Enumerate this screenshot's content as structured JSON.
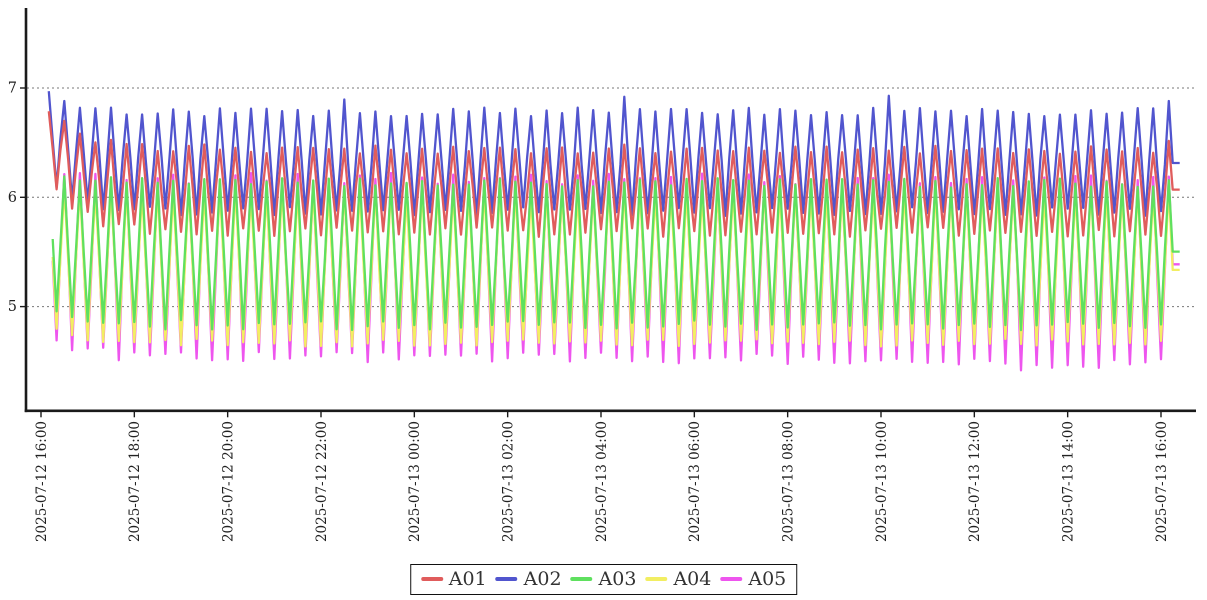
{
  "figure": {
    "background": "#ffffff",
    "axis_color": "#1a1a1a",
    "grid_color": "#777777",
    "tick_text_color": "#222222"
  },
  "chart_data": {
    "type": "line",
    "title": "",
    "xlabel": "",
    "ylabel": "",
    "x_axis": {
      "tick_interval": "2 hours",
      "tick_label_rotation_deg": 90,
      "tick_labels": [
        "2025-07-12 16:00",
        "2025-07-12 18:00",
        "2025-07-12 20:00",
        "2025-07-12 22:00",
        "2025-07-13 00:00",
        "2025-07-13 02:00",
        "2025-07-13 04:00",
        "2025-07-13 06:00",
        "2025-07-13 08:00",
        "2025-07-13 10:00",
        "2025-07-13 12:00",
        "2025-07-13 14:00",
        "2025-07-13 16:00"
      ]
    },
    "y_axis": {
      "tick_labels": [
        "5",
        "6",
        "7"
      ],
      "ticks": [
        5,
        6,
        7
      ],
      "ylim_approx": [
        4.05,
        7.72
      ]
    },
    "grid": {
      "horizontal_dashed": true
    },
    "duration_minutes": 1455,
    "sampling_minutes": 5,
    "waveform": "triangle oscillation, period ~20 min, all series in phase, peaks/troughs read from plot",
    "series": [
      {
        "name": "A01",
        "color": "#e05c5c",
        "seed": 101,
        "start_minute": 10,
        "period_minutes": 20,
        "peak": 6.44,
        "trough": 5.68,
        "noise": 0.045,
        "init_offset": 0.38,
        "init_tau": 2.2,
        "spike_chance": 0.02,
        "spike_size": 0.1,
        "draw_order": 1
      },
      {
        "name": "A02",
        "color": "#5155ce",
        "seed": 202,
        "start_minute": 10,
        "period_minutes": 20,
        "peak": 6.78,
        "trough": 5.87,
        "noise": 0.04,
        "init_offset": 0.22,
        "init_tau": 1.6,
        "spike_chance": 0.05,
        "spike_size": 0.12,
        "draw_order": 0
      },
      {
        "name": "A03",
        "color": "#5fe05f",
        "seed": 303,
        "start_minute": 15,
        "period_minutes": 20,
        "peak": 6.13,
        "trough": 4.83,
        "noise": 0.045,
        "init_offset": 0.1,
        "init_tau": 2.0,
        "spike_chance": 0,
        "spike_size": 0,
        "draw_order": 4
      },
      {
        "name": "A04",
        "color": "#f2ee62",
        "seed": 404,
        "start_minute": 15,
        "period_minutes": 20,
        "peak": 6.06,
        "trough": 4.67,
        "noise": 0.035,
        "init_offset": 0.1,
        "init_tau": 2.0,
        "spike_chance": 0,
        "spike_size": 0,
        "draw_order": 3
      },
      {
        "name": "A05",
        "color": "#ee55ee",
        "seed": 505,
        "start_minute": 15,
        "period_minutes": 20,
        "peak": 6.17,
        "trough": 4.53,
        "noise": 0.055,
        "init_offset": 0.12,
        "init_tau": 3.0,
        "spike_chance": 0,
        "spike_size": 0,
        "late_trough_after": 1060,
        "late_trough_drop": 0.06,
        "draw_order": 2
      }
    ],
    "legend": {
      "position": "bottom-center",
      "bordered": true
    }
  }
}
